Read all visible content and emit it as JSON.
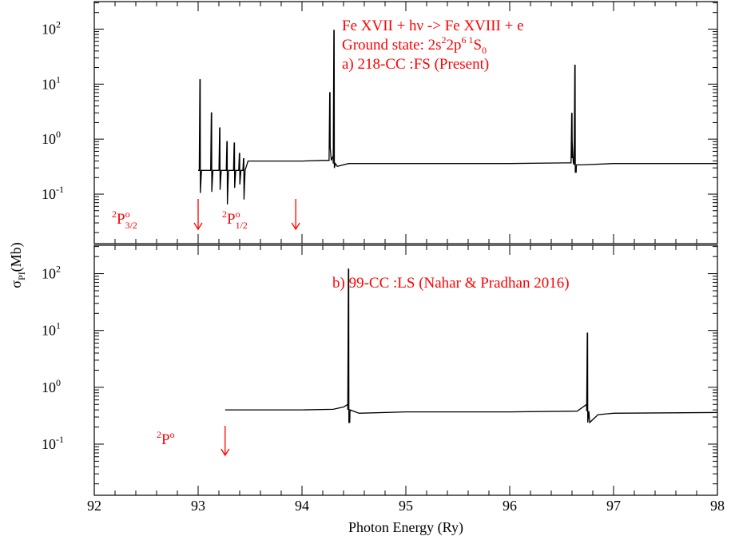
{
  "chart_data": {
    "type": "line",
    "xlabel": "Photon Energy (Ry)",
    "ylabel": "σ_PI(Mb)",
    "ylabel_main": "σ",
    "ylabel_sub": "PI",
    "ylabel_tail": "(Mb)",
    "xlim": [
      92,
      98
    ],
    "x_ticks": [
      "92",
      "93",
      "94",
      "95",
      "96",
      "97",
      "98"
    ],
    "y_scale": "log",
    "y_tick_base": "10",
    "y_tick_exps": [
      "-1",
      "0",
      "1",
      "2"
    ],
    "panels": [
      {
        "label": "a",
        "ylim_log10": [
          -1.9,
          2.5
        ],
        "annotations": [
          {
            "text": "Fe XVII + hν -> Fe XVIII + e"
          },
          {
            "parts": [
              "Ground state: 2s",
              "2",
              "2p",
              "6 1",
              "S",
              "0"
            ]
          },
          {
            "text": "a) 218-CC :FS (Present)"
          }
        ],
        "thresholds": [
          {
            "parts": [
              "2",
              "P",
              "o",
              "3/2"
            ],
            "energy": 93.0
          },
          {
            "parts": [
              "2",
              "P",
              "o",
              "1/2"
            ],
            "energy": 93.94
          }
        ],
        "series": [
          {
            "background": [
              [
                93.0,
                0.27
              ],
              [
                93.44,
                0.26
              ],
              [
                93.48,
                0.4
              ],
              [
                94.0,
                0.4
              ],
              [
                94.2,
                0.41
              ],
              [
                94.3,
                0.5
              ],
              [
                94.34,
                0.32
              ],
              [
                94.45,
                0.36
              ],
              [
                95.0,
                0.36
              ],
              [
                96.0,
                0.36
              ],
              [
                96.55,
                0.37
              ],
              [
                96.6,
                0.45
              ],
              [
                96.64,
                0.25
              ],
              [
                96.7,
                0.34
              ],
              [
                97.0,
                0.36
              ],
              [
                98.0,
                0.36
              ]
            ],
            "resonances": [
              {
                "x": 93.02,
                "peak": 12,
                "dip": 0.105,
                "base": 0.27
              },
              {
                "x": 93.13,
                "peak": 3.0,
                "dip": 0.11,
                "base": 0.27
              },
              {
                "x": 93.21,
                "peak": 1.6,
                "dip": 0.12,
                "base": 0.27
              },
              {
                "x": 93.28,
                "peak": 0.9,
                "dip": 0.065,
                "base": 0.27
              },
              {
                "x": 93.35,
                "peak": 0.85,
                "dip": 0.13,
                "base": 0.27
              },
              {
                "x": 93.4,
                "peak": 0.55,
                "dip": 0.15,
                "base": 0.27
              },
              {
                "x": 93.44,
                "peak": 0.45,
                "dip": 0.08,
                "base": 0.27
              },
              {
                "x": 94.27,
                "peak": 7.0,
                "dip": 0.7,
                "base": 0.41
              },
              {
                "x": 94.31,
                "peak": 95,
                "dip": 0.3,
                "base": 0.36
              },
              {
                "x": 96.6,
                "peak": 3.0,
                "dip": 0.9,
                "base": 0.37
              },
              {
                "x": 96.63,
                "peak": 22,
                "dip": 0.25,
                "base": 0.34
              }
            ]
          }
        ]
      },
      {
        "label": "b",
        "ylim_log10": [
          -1.9,
          2.5
        ],
        "annotations": [
          {
            "text": "b) 99-CC :LS (Nahar & Pradhan 2016)"
          }
        ],
        "thresholds": [
          {
            "parts": [
              "2",
              "P",
              "o",
              ""
            ],
            "energy": 93.26
          }
        ],
        "series": [
          {
            "background": [
              [
                93.26,
                0.4
              ],
              [
                94.0,
                0.4
              ],
              [
                94.3,
                0.41
              ],
              [
                94.4,
                0.45
              ],
              [
                94.44,
                0.5
              ],
              [
                94.46,
                0.24
              ],
              [
                94.55,
                0.35
              ],
              [
                95.0,
                0.37
              ],
              [
                96.0,
                0.37
              ],
              [
                96.65,
                0.38
              ],
              [
                96.74,
                0.5
              ],
              [
                96.77,
                0.24
              ],
              [
                96.85,
                0.33
              ],
              [
                97.0,
                0.35
              ],
              [
                98.0,
                0.36
              ]
            ],
            "resonances": [
              {
                "x": 94.45,
                "peak": 120,
                "dip": 0.24,
                "base": 0.4
              },
              {
                "x": 96.75,
                "peak": 9,
                "dip": 0.24,
                "base": 0.38
              }
            ]
          }
        ]
      }
    ]
  }
}
